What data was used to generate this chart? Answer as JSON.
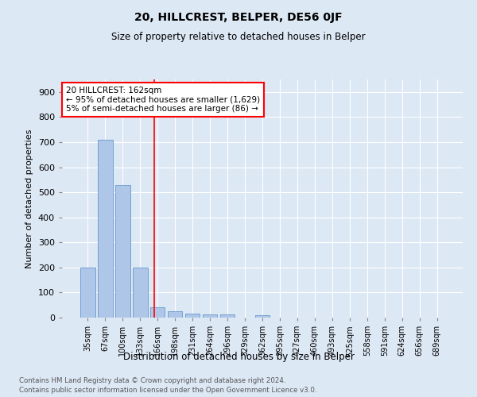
{
  "title": "20, HILLCREST, BELPER, DE56 0JF",
  "subtitle": "Size of property relative to detached houses in Belper",
  "xlabel": "Distribution of detached houses by size in Belper",
  "ylabel": "Number of detached properties",
  "footer_line1": "Contains HM Land Registry data © Crown copyright and database right 2024.",
  "footer_line2": "Contains public sector information licensed under the Open Government Licence v3.0.",
  "categories": [
    "35sqm",
    "67sqm",
    "100sqm",
    "133sqm",
    "166sqm",
    "198sqm",
    "231sqm",
    "264sqm",
    "296sqm",
    "329sqm",
    "362sqm",
    "395sqm",
    "427sqm",
    "460sqm",
    "493sqm",
    "525sqm",
    "558sqm",
    "591sqm",
    "624sqm",
    "656sqm",
    "689sqm"
  ],
  "values": [
    200,
    710,
    530,
    200,
    40,
    25,
    15,
    13,
    12,
    0,
    10,
    0,
    0,
    0,
    0,
    0,
    0,
    0,
    0,
    0,
    0
  ],
  "bar_color": "#aec6e8",
  "bar_edge_color": "#6699cc",
  "background_color": "#dde8f5",
  "red_line_x": 3.82,
  "annotation_text": "20 HILLCREST: 162sqm\n← 95% of detached houses are smaller (1,629)\n5% of semi-detached houses are larger (86) →",
  "annotation_box_color": "white",
  "annotation_box_edge": "red",
  "ylim": [
    0,
    950
  ],
  "yticks": [
    0,
    100,
    200,
    300,
    400,
    500,
    600,
    700,
    800,
    900
  ]
}
